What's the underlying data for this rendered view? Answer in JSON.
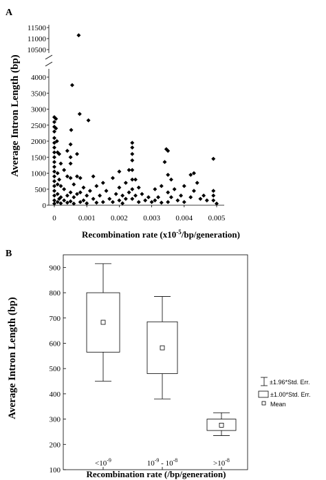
{
  "panel_a": {
    "letter": "A",
    "xlabel": "Recombination rate (x10",
    "xlabel_sup": "-5",
    "xlabel_tail": "/bp/generation)",
    "ylabel": "Average Intron Length (bp)",
    "x_ticks": [
      "0",
      "0.001",
      "0.002",
      "0.003",
      "0.004",
      "0.005"
    ],
    "y_ticks_lower": [
      "0",
      "500",
      "1000",
      "1500",
      "2000",
      "2500",
      "3000",
      "3500",
      "4000"
    ],
    "y_ticks_upper": [
      "10500",
      "11000",
      "11500"
    ]
  },
  "panel_b": {
    "letter": "B",
    "xlabel": "Recombination rate (/bp/generation)",
    "ylabel": "Average Intron Length (bp)",
    "y_ticks": [
      "100",
      "200",
      "300",
      "400",
      "500",
      "600",
      "700",
      "800",
      "900"
    ],
    "categories": [
      {
        "base": "<10",
        "exp": "-9",
        "mid": "",
        "base2": "",
        "exp2": ""
      },
      {
        "base": "10",
        "exp": "-9",
        "mid": " - ",
        "base2": "10",
        "exp2": "-8"
      },
      {
        "base": ">10",
        "exp": "-8",
        "mid": "",
        "base2": "",
        "exp2": ""
      }
    ],
    "legend": {
      "whisker": "±1.96*Std. Err.",
      "box": "±1.00*Std. Err.",
      "mean": "Mean"
    }
  },
  "chart_data": [
    {
      "type": "scatter",
      "panel": "A",
      "xlabel": "Recombination rate (x10^-5/bp/generation)",
      "ylabel": "Average Intron Length (bp)",
      "xlim": [
        0,
        0.0052
      ],
      "ylim_lower": [
        0,
        4000
      ],
      "ylim_upper": [
        10500,
        11500
      ],
      "axis_break": true,
      "marker": "diamond",
      "points": [
        [
          0.00075,
          11150
        ],
        [
          0.00055,
          3750
        ],
        [
          0.00078,
          2850
        ],
        [
          0.00105,
          2650
        ],
        [
          0.0,
          2750
        ],
        [
          0.0,
          2600
        ],
        [
          0.0,
          2450
        ],
        [
          0.0,
          2300
        ],
        [
          0.0,
          2100
        ],
        [
          0.0,
          1950
        ],
        [
          0.0,
          1800
        ],
        [
          5e-05,
          2700
        ],
        [
          5e-05,
          2400
        ],
        [
          8e-05,
          2000
        ],
        [
          0.0,
          1650
        ],
        [
          0.0,
          1500
        ],
        [
          0.0,
          1350
        ],
        [
          0.0,
          1200
        ],
        [
          0.0,
          1050
        ],
        [
          0.0,
          900
        ],
        [
          0.0,
          750
        ],
        [
          0.0,
          600
        ],
        [
          0.0,
          450
        ],
        [
          0.0,
          300
        ],
        [
          0.0,
          150
        ],
        [
          0.0,
          50
        ],
        [
          0.0001,
          1650
        ],
        [
          0.0001,
          1000
        ],
        [
          0.0001,
          650
        ],
        [
          0.0001,
          350
        ],
        [
          0.0001,
          100
        ],
        [
          0.00015,
          1600
        ],
        [
          0.00015,
          800
        ],
        [
          0.00015,
          200
        ],
        [
          0.0002,
          1300
        ],
        [
          0.0002,
          600
        ],
        [
          0.0002,
          250
        ],
        [
          0.0002,
          60
        ],
        [
          0.0003,
          1100
        ],
        [
          0.0003,
          500
        ],
        [
          0.0003,
          150
        ],
        [
          0.0004,
          1700
        ],
        [
          0.0004,
          900
        ],
        [
          0.0004,
          300
        ],
        [
          0.0004,
          80
        ],
        [
          0.00052,
          2350
        ],
        [
          0.0005,
          1900
        ],
        [
          0.0005,
          1500
        ],
        [
          0.0005,
          1300
        ],
        [
          0.0005,
          850
        ],
        [
          0.0005,
          400
        ],
        [
          0.0005,
          120
        ],
        [
          0.0006,
          650
        ],
        [
          0.0006,
          250
        ],
        [
          0.0006,
          50
        ],
        [
          0.0007,
          1600
        ],
        [
          0.0007,
          900
        ],
        [
          0.0007,
          350
        ],
        [
          0.0008,
          850
        ],
        [
          0.0008,
          400
        ],
        [
          0.0008,
          100
        ],
        [
          0.0009,
          550
        ],
        [
          0.0009,
          150
        ],
        [
          0.001,
          300
        ],
        [
          0.001,
          60
        ],
        [
          0.0011,
          450
        ],
        [
          0.0012,
          900
        ],
        [
          0.0012,
          200
        ],
        [
          0.0013,
          600
        ],
        [
          0.0013,
          80
        ],
        [
          0.0014,
          300
        ],
        [
          0.0015,
          700
        ],
        [
          0.0015,
          100
        ],
        [
          0.0016,
          450
        ],
        [
          0.0017,
          200
        ],
        [
          0.0018,
          850
        ],
        [
          0.0018,
          100
        ],
        [
          0.0019,
          350
        ],
        [
          0.002,
          1050
        ],
        [
          0.002,
          550
        ],
        [
          0.002,
          150
        ],
        [
          0.0021,
          300
        ],
        [
          0.0021,
          60
        ],
        [
          0.0022,
          700
        ],
        [
          0.0022,
          200
        ],
        [
          0.0023,
          1100
        ],
        [
          0.0023,
          400
        ],
        [
          0.0024,
          1950
        ],
        [
          0.0024,
          1800
        ],
        [
          0.0024,
          1600
        ],
        [
          0.0024,
          1400
        ],
        [
          0.0024,
          1100
        ],
        [
          0.0024,
          800
        ],
        [
          0.0024,
          500
        ],
        [
          0.0024,
          200
        ],
        [
          0.0025,
          800
        ],
        [
          0.0025,
          300
        ],
        [
          0.0026,
          550
        ],
        [
          0.0026,
          100
        ],
        [
          0.0027,
          350
        ],
        [
          0.0028,
          150
        ],
        [
          0.0029,
          250
        ],
        [
          0.003,
          100
        ],
        [
          0.0031,
          500
        ],
        [
          0.0031,
          150
        ],
        [
          0.0032,
          250
        ],
        [
          0.0033,
          600
        ],
        [
          0.0033,
          80
        ],
        [
          0.00345,
          1750
        ],
        [
          0.0035,
          1700
        ],
        [
          0.0034,
          1350
        ],
        [
          0.0035,
          950
        ],
        [
          0.0035,
          400
        ],
        [
          0.0035,
          100
        ],
        [
          0.0036,
          800
        ],
        [
          0.0036,
          250
        ],
        [
          0.0037,
          500
        ],
        [
          0.0038,
          150
        ],
        [
          0.0039,
          300
        ],
        [
          0.004,
          600
        ],
        [
          0.004,
          100
        ],
        [
          0.0042,
          950
        ],
        [
          0.0042,
          250
        ],
        [
          0.0043,
          1000
        ],
        [
          0.0043,
          450
        ],
        [
          0.0044,
          700
        ],
        [
          0.0045,
          200
        ],
        [
          0.0046,
          300
        ],
        [
          0.0047,
          150
        ],
        [
          0.0049,
          1450
        ],
        [
          0.0049,
          450
        ],
        [
          0.0049,
          300
        ],
        [
          0.0049,
          150
        ],
        [
          0.005,
          50
        ]
      ]
    },
    {
      "type": "box",
      "panel": "B",
      "xlabel": "Recombination rate (/bp/generation)",
      "ylabel": "Average Intron Length (bp)",
      "ylim": [
        100,
        950
      ],
      "categories": [
        "<10^-9",
        "10^-9 - 10^-8",
        ">10^-8"
      ],
      "series": [
        {
          "name": "Mean",
          "values": [
            683,
            582,
            276
          ]
        },
        {
          "name": "±1.00*Std. Err.",
          "values": [
            [
              565,
              800
            ],
            [
              480,
              685
            ],
            [
              255,
              300
            ]
          ]
        },
        {
          "name": "±1.96*Std. Err.",
          "values": [
            [
              450,
              915
            ],
            [
              380,
              785
            ],
            [
              235,
              325
            ]
          ]
        }
      ]
    }
  ]
}
